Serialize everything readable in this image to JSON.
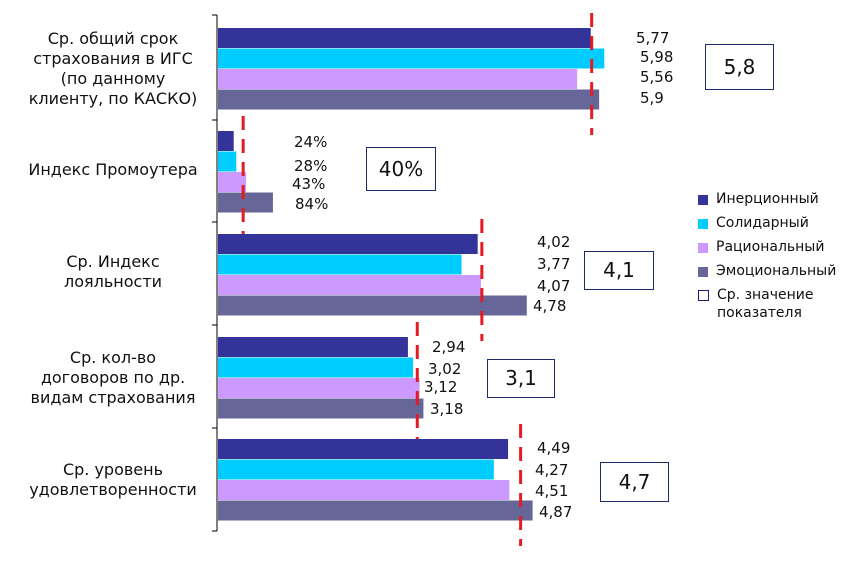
{
  "chart_data": {
    "type": "bar",
    "orientation": "horizontal",
    "title": "",
    "xlabel": "",
    "ylabel": "",
    "categories": [
      "Ср. общий срок\nстрахования в ИГС\n(по данному\nклиенту, по КАСКО)",
      "Индекс Промоутера",
      "Ср. Индекс\nлояльности",
      "Ср. кол-во\nдоговоров по др.\nвидам страхования",
      "Ср. уровень\nудовлетворенности"
    ],
    "series": [
      {
        "name": "Инерционный",
        "color": "#333399",
        "values": [
          5.77,
          0.24,
          4.02,
          2.94,
          4.49
        ],
        "labels": [
          "5,77",
          "24%",
          "4,02",
          "2,94",
          "4,49"
        ]
      },
      {
        "name": "Солидарный",
        "color": "#00CCFF",
        "values": [
          5.98,
          0.28,
          3.77,
          3.02,
          4.27
        ],
        "labels": [
          "5,98",
          "28%",
          "3,77",
          "3,02",
          "4,27"
        ]
      },
      {
        "name": "Рациональный",
        "color": "#CC99FF",
        "values": [
          5.56,
          0.43,
          4.07,
          3.12,
          4.51
        ],
        "labels": [
          "5,56",
          "43%",
          "4,07",
          "3,12",
          "4,51"
        ]
      },
      {
        "name": "Эмоциональный",
        "color": "#666699",
        "values": [
          5.9,
          0.84,
          4.78,
          3.18,
          4.87
        ],
        "labels": [
          "5,9",
          "84%",
          "4,78",
          "3,18",
          "4,87"
        ]
      }
    ],
    "averages": {
      "values": [
        5.8,
        0.4,
        4.1,
        3.1,
        4.7
      ],
      "labels": [
        "5,8",
        "40%",
        "4,1",
        "3,1",
        "4,7"
      ],
      "line_color": "#E31B23"
    },
    "legend": {
      "position": "right",
      "avg_label": "Ср. значение\nпоказателя"
    },
    "grid": false
  }
}
